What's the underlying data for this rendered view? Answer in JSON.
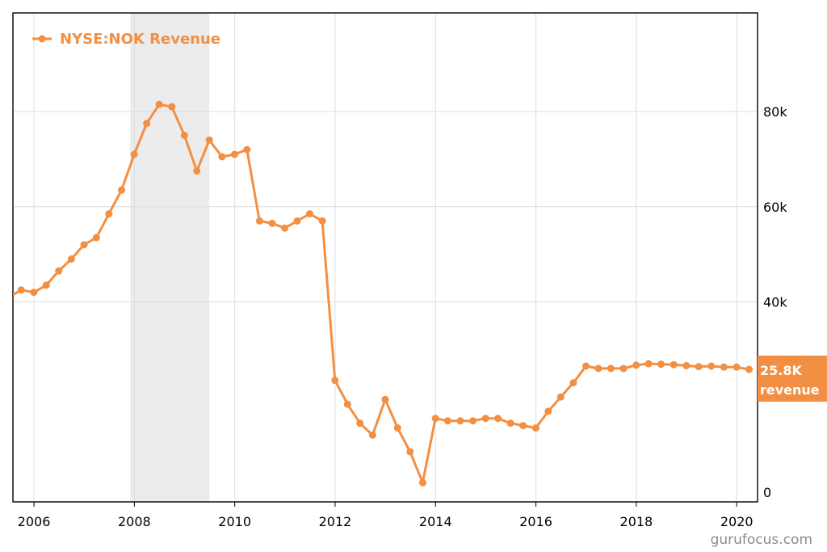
{
  "chart_data": {
    "type": "line",
    "ylim": [
      0,
      100000
    ],
    "xlim": [
      "2005-08-01",
      "2020-06-01"
    ],
    "y_ticks": [
      0,
      40000,
      60000,
      80000
    ],
    "y_tick_labels": [
      "0",
      "40k",
      "60k",
      "80k"
    ],
    "x_tick_labels": [
      "2006",
      "2008",
      "2010",
      "2012",
      "2014",
      "2016",
      "2018",
      "2020"
    ],
    "grid": true,
    "legend_position": "top-left",
    "recession_band": {
      "start": "2007-12-01",
      "end": "2009-06-30"
    },
    "series": [
      {
        "name": "NYSE:NOK Revenue",
        "color": "#f28f43",
        "x": [
          "2005-09-30",
          "2005-12-31",
          "2006-03-31",
          "2006-06-30",
          "2006-09-30",
          "2006-12-31",
          "2007-03-31",
          "2007-06-30",
          "2007-09-30",
          "2007-12-31",
          "2008-03-31",
          "2008-06-30",
          "2008-09-30",
          "2008-12-31",
          "2009-03-31",
          "2009-06-30",
          "2009-09-30",
          "2009-12-31",
          "2010-03-31",
          "2010-06-30",
          "2010-09-30",
          "2010-12-31",
          "2011-03-31",
          "2011-06-30",
          "2011-09-30",
          "2011-12-31",
          "2012-03-31",
          "2012-06-30",
          "2012-09-30",
          "2012-12-31",
          "2013-03-31",
          "2013-06-30",
          "2013-09-30",
          "2013-12-31",
          "2014-03-31",
          "2014-06-30",
          "2014-09-30",
          "2014-12-31",
          "2015-03-31",
          "2015-06-30",
          "2015-09-30",
          "2015-12-31",
          "2016-03-31",
          "2016-06-30",
          "2016-09-30",
          "2016-12-31",
          "2017-03-31",
          "2017-06-30",
          "2017-09-30",
          "2017-12-31",
          "2018-03-31",
          "2018-06-30",
          "2018-09-30",
          "2018-12-31",
          "2019-03-31",
          "2019-06-30",
          "2019-09-30",
          "2019-12-31",
          "2020-03-31"
        ],
        "values": [
          42500,
          42000,
          43500,
          46500,
          49000,
          52000,
          53500,
          58500,
          63500,
          71000,
          77500,
          81500,
          81000,
          75000,
          67500,
          74000,
          70500,
          71000,
          72000,
          57000,
          56500,
          55500,
          57000,
          58500,
          57000,
          23500,
          18500,
          14500,
          12000,
          19500,
          13500,
          8500,
          2000,
          15500,
          15000,
          15000,
          15000,
          15500,
          15500,
          14500,
          14000,
          13500,
          17000,
          20000,
          23000,
          26500,
          26000,
          26000,
          26000,
          26700,
          27000,
          26900,
          26800,
          26600,
          26400,
          26500,
          26300,
          26300,
          25800
        ]
      }
    ],
    "latest_badge": {
      "value": "25.8K",
      "label": "revenue",
      "value_num": 25800
    }
  },
  "watermark": "gurufocus.com"
}
